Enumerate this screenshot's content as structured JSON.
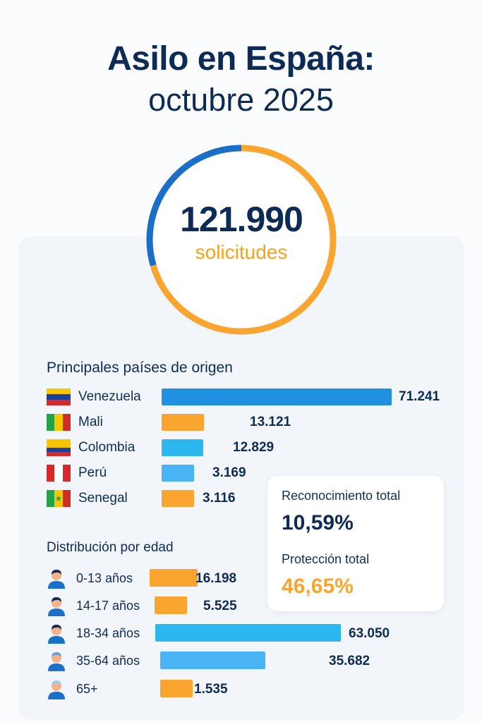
{
  "header": {
    "title": "Asilo en España:",
    "subtitle": "octubre 2025"
  },
  "summary": {
    "total": "121.990",
    "total_label": "solicitudes"
  },
  "colors": {
    "dark_blue": "#0d2b55",
    "blue": "#2290e0",
    "light_blue": "#2cb8ee",
    "sky": "#48b4f4",
    "orange": "#f9a530"
  },
  "countries": {
    "title": "Principales países de origen",
    "rows": [
      {
        "name": "Venezuela",
        "value_label": "71.241",
        "flag": "venezuela-flag-icon"
      },
      {
        "name": "Mali",
        "value_label": "13.121",
        "flag": "mali-flag-icon"
      },
      {
        "name": "Colombia",
        "value_label": "12.829",
        "flag": "colombia-flag-icon"
      },
      {
        "name": "Perú",
        "value_label": "3.169",
        "flag": "peru-flag-icon"
      },
      {
        "name": "Senegal",
        "value_label": "3.116",
        "flag": "senegal-flag-icon"
      }
    ]
  },
  "ages": {
    "title": "Distribución por edad",
    "rows": [
      {
        "name": "0-13 años",
        "value_label": "16.198"
      },
      {
        "name": "14-17 años",
        "value_label": "5.525"
      },
      {
        "name": "18-34 años",
        "value_label": "63.050"
      },
      {
        "name": "35-64 años",
        "value_label": "35.682"
      },
      {
        "name": "65+",
        "value_label": "1.535"
      }
    ]
  },
  "stats": {
    "recognition_label": "Reconocimiento total",
    "recognition_value": "10,59%",
    "protection_label": "Protección total",
    "protection_value": "46,65%"
  },
  "chart_data": [
    {
      "type": "bar",
      "title": "Principales países de origen",
      "categories": [
        "Venezuela",
        "Mali",
        "Colombia",
        "Perú",
        "Senegal"
      ],
      "values": [
        71241,
        13121,
        12829,
        3169,
        3116
      ]
    },
    {
      "type": "bar",
      "title": "Distribución por edad",
      "categories": [
        "0-13 años",
        "14-17 años",
        "18-34 años",
        "35-64 años",
        "65+"
      ],
      "values": [
        16198,
        5525,
        63050,
        35682,
        1535
      ]
    }
  ]
}
